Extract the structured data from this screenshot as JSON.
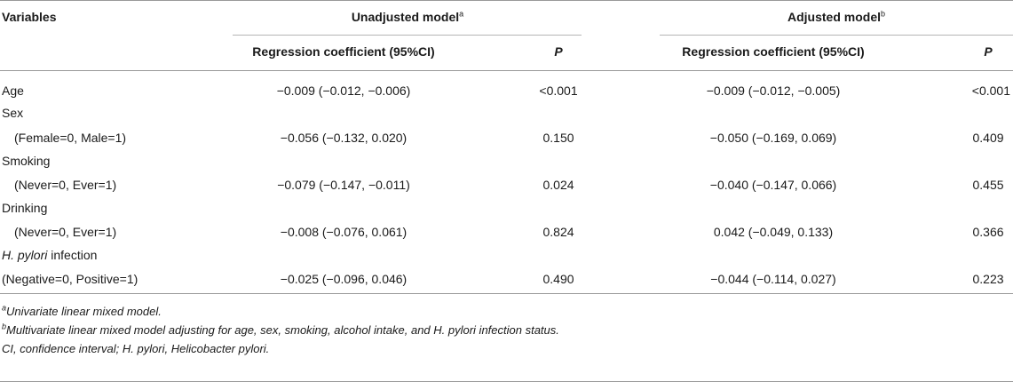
{
  "header": {
    "variables": "Variables",
    "unadjusted": "Unadjusted model",
    "unadjusted_sup": "a",
    "adjusted": "Adjusted model",
    "adjusted_sup": "b",
    "coef_unadj": "Regression coefficient (95%CI)",
    "p_unadj": "P",
    "coef_adj": "Regression coefficient (95%CI)",
    "p_adj": "P"
  },
  "rows": [
    {
      "label": "Age",
      "coef_u": "−0.009 (−0.012, −0.006)",
      "p_u": "<0.001",
      "coef_a": "−0.009 (−0.012, −0.005)",
      "p_a": "<0.001"
    },
    {
      "label": "Sex"
    },
    {
      "label": "(Female=0, Male=1)",
      "coef_u": "−0.056 (−0.132, 0.020)",
      "p_u": "0.150",
      "coef_a": "−0.050 (−0.169, 0.069)",
      "p_a": "0.409"
    },
    {
      "label": "Smoking"
    },
    {
      "label": "(Never=0, Ever=1)",
      "coef_u": "−0.079 (−0.147, −0.011)",
      "p_u": "0.024",
      "coef_a": "−0.040 (−0.147, 0.066)",
      "p_a": "0.455"
    },
    {
      "label": "Drinking"
    },
    {
      "label": "(Never=0, Ever=1)",
      "coef_u": "−0.008 (−0.076, 0.061)",
      "p_u": "0.824",
      "coef_a": "0.042 (−0.049, 0.133)",
      "p_a": "0.366"
    },
    {
      "label_italic": "H. pylori",
      "label": " infection"
    },
    {
      "label": "(Negative=0, Positive=1)",
      "coef_u": "−0.025 (−0.096, 0.046)",
      "p_u": "0.490",
      "coef_a": "−0.044 (−0.114, 0.027)",
      "p_a": "0.223"
    }
  ],
  "footnotes": {
    "a_sup": "a",
    "a_text": "Univariate linear mixed model.",
    "b_sup": "b",
    "b_text": "Multivariate linear mixed model adjusting for age, sex, smoking, alcohol intake, and H. pylori infection status.",
    "c_text": "CI, confidence interval; H. pylori, Helicobacter pylori."
  }
}
